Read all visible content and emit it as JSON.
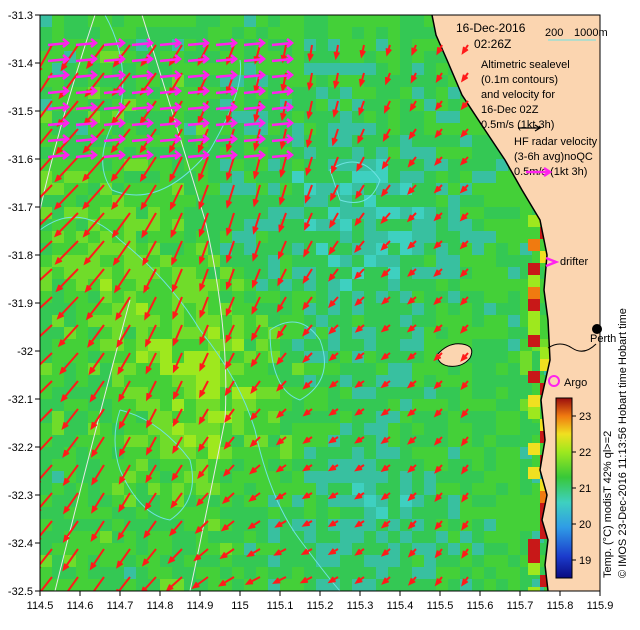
{
  "map": {
    "date": "16-Dec-2016",
    "time": "02:26Z",
    "x_ticks": [
      "114.5",
      "114.6",
      "114.7",
      "114.8",
      "114.9",
      "115",
      "115.1",
      "115.2",
      "115.3",
      "115.4",
      "115.5",
      "115.6",
      "115.7",
      "115.8",
      "115.9"
    ],
    "y_ticks": [
      "-31.3",
      "-31.4",
      "-31.5",
      "-31.6",
      "-31.7",
      "-31.8",
      "-31.9",
      "-32",
      "-32.1",
      "-32.2",
      "-32.3",
      "-32.4",
      "-32.5"
    ],
    "bathy": {
      "contour_200": "200",
      "contour_1000": "1000m"
    },
    "legend": {
      "altimetry_lines": [
        "Altimetric sealevel",
        "(0.1m contours)",
        "and velocity for",
        "16-Dec 02Z",
        "0.5m/s (1kt 3h)"
      ],
      "hf_lines": [
        "HF radar velocity",
        "(3-6h avg)noQC",
        "0.5m/s (1kt 3h)"
      ],
      "drifter": "drifter",
      "argo": "Argo"
    },
    "places": {
      "perth": "Perth",
      "hobart_time": "Hobart time"
    },
    "colorbar": {
      "ticks": [
        "23",
        "22",
        "21",
        "20",
        "19"
      ],
      "caption": "Temp. (°C) modisT 42% ql>=2",
      "credit": "© IMOS 23-Dec-2016 11:13:56 Hobart time"
    },
    "colors": {
      "land": "#fbd5b0",
      "coast": "#000000",
      "frame": "#000000",
      "alt_arrow": "#ff1a1a",
      "hf_arrow": "#ff22ee",
      "contour": "#6fe3e3",
      "bathy_line": "#e8e8e8"
    }
  }
}
